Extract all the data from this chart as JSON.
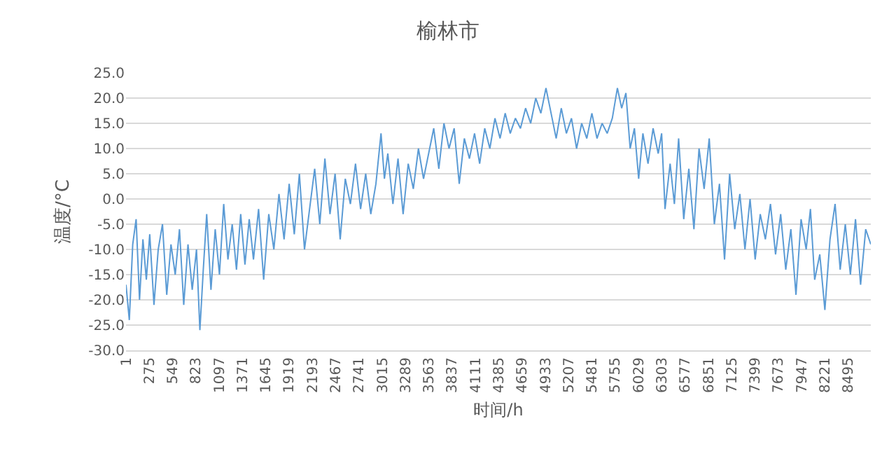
{
  "chart_data": {
    "type": "line",
    "title": "榆林市",
    "xlabel": "时间/h",
    "ylabel": "温度/°C",
    "x": [
      1,
      40,
      80,
      120,
      160,
      200,
      240,
      280,
      330,
      380,
      430,
      480,
      530,
      580,
      630,
      680,
      730,
      780,
      830,
      870,
      910,
      950,
      1000,
      1050,
      1100,
      1150,
      1200,
      1250,
      1300,
      1350,
      1400,
      1450,
      1500,
      1560,
      1620,
      1680,
      1740,
      1800,
      1860,
      1920,
      1980,
      2040,
      2100,
      2160,
      2220,
      2280,
      2340,
      2400,
      2460,
      2520,
      2580,
      2640,
      2700,
      2760,
      2820,
      2880,
      2940,
      3000,
      3040,
      3080,
      3140,
      3200,
      3260,
      3320,
      3380,
      3440,
      3500,
      3560,
      3620,
      3680,
      3740,
      3800,
      3860,
      3920,
      3980,
      4040,
      4100,
      4160,
      4220,
      4280,
      4340,
      4400,
      4460,
      4520,
      4580,
      4640,
      4700,
      4760,
      4820,
      4880,
      4940,
      5000,
      5060,
      5120,
      5180,
      5240,
      5300,
      5360,
      5420,
      5480,
      5540,
      5600,
      5660,
      5720,
      5780,
      5830,
      5880,
      5930,
      5980,
      6030,
      6080,
      6140,
      6200,
      6260,
      6300,
      6340,
      6400,
      6450,
      6500,
      6560,
      6620,
      6680,
      6740,
      6800,
      6860,
      6920,
      6980,
      7040,
      7100,
      7160,
      7220,
      7280,
      7340,
      7400,
      7460,
      7520,
      7580,
      7640,
      7700,
      7760,
      7820,
      7880,
      7940,
      8000,
      8050,
      8100,
      8160,
      8220,
      8280,
      8340,
      8400,
      8460,
      8520,
      8580,
      8640,
      8700,
      8760
    ],
    "series": [
      {
        "color": "#5b9bd5",
        "values": [
          -17,
          -24,
          -9,
          -4,
          -20,
          -8,
          -16,
          -7,
          -21,
          -10,
          -5,
          -19,
          -9,
          -15,
          -6,
          -21,
          -9,
          -18,
          -10,
          -26,
          -14,
          -3,
          -18,
          -6,
          -15,
          -1,
          -12,
          -5,
          -14,
          -3,
          -13,
          -4,
          -12,
          -2,
          -16,
          -3,
          -10,
          1,
          -8,
          3,
          -7,
          5,
          -10,
          -2,
          6,
          -5,
          8,
          -3,
          5,
          -8,
          4,
          -1,
          7,
          -2,
          5,
          -3,
          3,
          13,
          4,
          9,
          -1,
          8,
          -3,
          7,
          2,
          10,
          4,
          9,
          14,
          6,
          15,
          10,
          14,
          3,
          12,
          8,
          13,
          7,
          14,
          10,
          16,
          12,
          17,
          13,
          16,
          14,
          18,
          15,
          20,
          17,
          22,
          17,
          12,
          18,
          13,
          16,
          10,
          15,
          12,
          17,
          12,
          15,
          13,
          16,
          22,
          18,
          21,
          10,
          14,
          4,
          13,
          7,
          14,
          9,
          13,
          -2,
          7,
          -1,
          12,
          -4,
          6,
          -6,
          10,
          2,
          12,
          -5,
          3,
          -12,
          5,
          -6,
          1,
          -10,
          0,
          -12,
          -3,
          -8,
          -1,
          -11,
          -3,
          -14,
          -6,
          -19,
          -4,
          -10,
          -2,
          -16,
          -11,
          -22,
          -8,
          -1,
          -14,
          -5,
          -15,
          -4,
          -17,
          -6,
          -9
        ]
      }
    ],
    "xlim": [
      1,
      8760
    ],
    "xticks": [
      1,
      275,
      549,
      823,
      1097,
      1371,
      1645,
      1919,
      2193,
      2467,
      2741,
      3015,
      3289,
      3563,
      3837,
      4111,
      4385,
      4659,
      4933,
      5207,
      5481,
      5755,
      6029,
      6303,
      6577,
      6851,
      7125,
      7399,
      7673,
      7947,
      8221,
      8495
    ],
    "ylim": [
      -30,
      25
    ],
    "yticks": [
      {
        "value": -30,
        "label": "-30.0"
      },
      {
        "value": -25,
        "label": "-25.0"
      },
      {
        "value": -20,
        "label": "-20.0"
      },
      {
        "value": -15,
        "label": "-15.0"
      },
      {
        "value": -10,
        "label": "-10.0"
      },
      {
        "value": -5,
        "label": "-5.0"
      },
      {
        "value": 0,
        "label": "0.0"
      },
      {
        "value": 5,
        "label": "5.0"
      },
      {
        "value": 10,
        "label": "10.0"
      },
      {
        "value": 15,
        "label": "15.0"
      },
      {
        "value": 20,
        "label": "20.0"
      },
      {
        "value": 25,
        "label": "25.0"
      }
    ],
    "grid": "y",
    "marker": "none",
    "line_style": "solid"
  }
}
